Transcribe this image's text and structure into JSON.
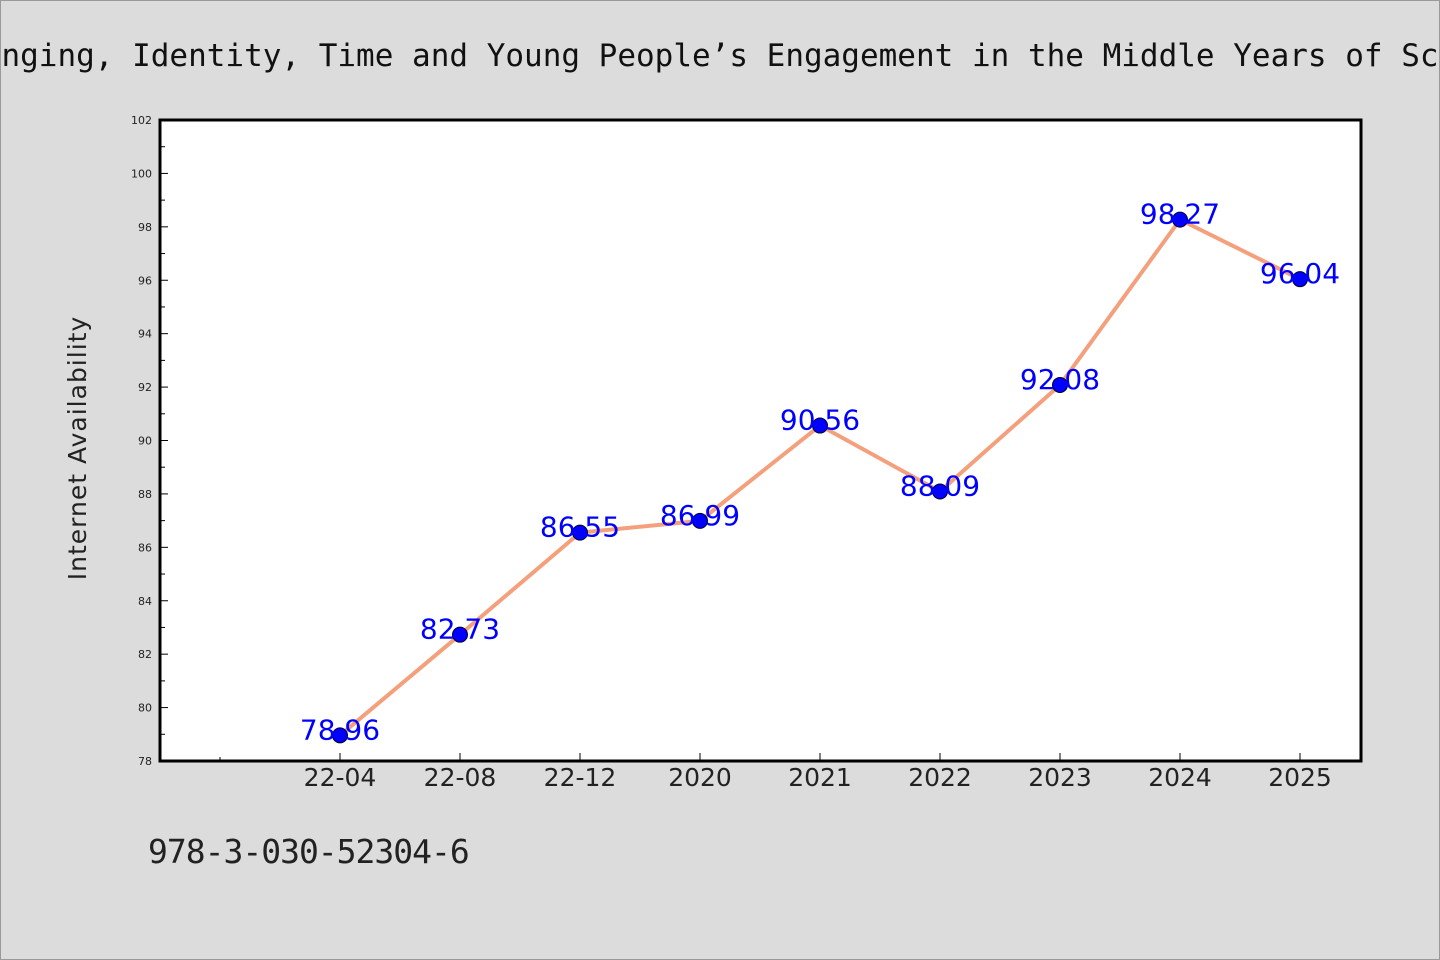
{
  "chart_data": {
    "type": "line",
    "title": "Belonging, Identity, Time and Young People’s Engagement in the Middle Years of School",
    "ylabel": "Internet Availability",
    "xlabel": "",
    "categories": [
      "22-04",
      "22-08",
      "22-12",
      "2020",
      "2021",
      "2022",
      "2023",
      "2024",
      "2025"
    ],
    "values": [
      78.96,
      82.73,
      86.55,
      86.99,
      90.56,
      88.09,
      92.08,
      98.27,
      96.04
    ],
    "data_labels": [
      "78.96",
      "82.73",
      "86.55",
      "86.99",
      "90.56",
      "88.09",
      "92.08",
      "98.27",
      "96.04"
    ],
    "ylim": [
      78,
      102
    ],
    "yticks": [
      "78",
      "80",
      "82",
      "84",
      "86",
      "88",
      "90",
      "92",
      "94",
      "96",
      "98",
      "100",
      "102"
    ],
    "grid": false,
    "legend": "none",
    "line_color": "#f4a07c",
    "marker_color": "#0000ff",
    "label_color": "#0000ff"
  },
  "footer": {
    "isbn": "978-3-030-52304-6"
  }
}
